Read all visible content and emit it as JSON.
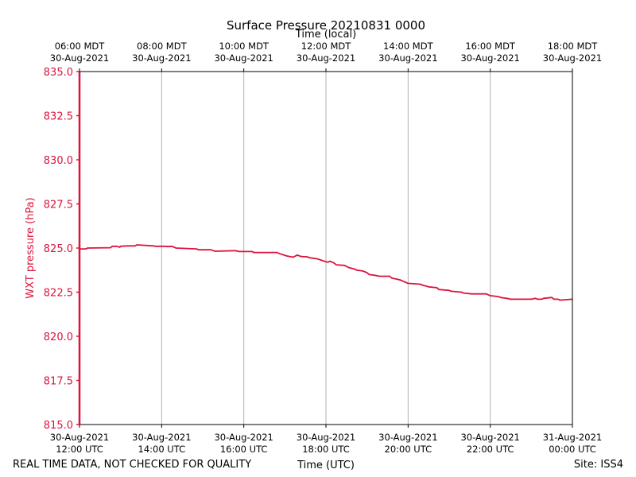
{
  "chart_data": {
    "type": "line",
    "title": "Surface Pressure 20210831 0000",
    "top_axis_label": "Time (local)",
    "xlabel": "Time (UTC)",
    "ylabel": "WXT pressure (hPa)",
    "ylim": [
      815.0,
      835.0
    ],
    "y_ticks": [
      815.0,
      817.5,
      820.0,
      822.5,
      825.0,
      827.5,
      830.0,
      832.5,
      835.0
    ],
    "y_tick_labels": [
      "815.0",
      "817.5",
      "820.0",
      "822.5",
      "825.0",
      "827.5",
      "830.0",
      "832.5",
      "835.0"
    ],
    "xlim_hours_utc": [
      12,
      24
    ],
    "x_ticks_utc": [
      {
        "hour": 12,
        "date": "30-Aug-2021",
        "time": "12:00 UTC"
      },
      {
        "hour": 14,
        "date": "30-Aug-2021",
        "time": "14:00 UTC"
      },
      {
        "hour": 16,
        "date": "30-Aug-2021",
        "time": "16:00 UTC"
      },
      {
        "hour": 18,
        "date": "30-Aug-2021",
        "time": "18:00 UTC"
      },
      {
        "hour": 20,
        "date": "30-Aug-2021",
        "time": "20:00 UTC"
      },
      {
        "hour": 22,
        "date": "30-Aug-2021",
        "time": "22:00 UTC"
      },
      {
        "hour": 24,
        "date": "31-Aug-2021",
        "time": "00:00 UTC"
      }
    ],
    "x_ticks_local": [
      {
        "hour": 12,
        "time": "06:00 MDT",
        "date": "30-Aug-2021"
      },
      {
        "hour": 14,
        "time": "08:00 MDT",
        "date": "30-Aug-2021"
      },
      {
        "hour": 16,
        "time": "10:00 MDT",
        "date": "30-Aug-2021"
      },
      {
        "hour": 18,
        "time": "12:00 MDT",
        "date": "30-Aug-2021"
      },
      {
        "hour": 20,
        "time": "14:00 MDT",
        "date": "30-Aug-2021"
      },
      {
        "hour": 22,
        "time": "16:00 MDT",
        "date": "30-Aug-2021"
      },
      {
        "hour": 24,
        "time": "18:00 MDT",
        "date": "30-Aug-2021"
      }
    ],
    "grid": "vertical",
    "series": [
      {
        "name": "WXT pressure",
        "color": "#dc143c",
        "x": [
          12.0,
          12.02,
          12.15,
          12.2,
          12.75,
          12.8,
          12.9,
          12.98,
          13.0,
          13.15,
          13.35,
          13.4,
          13.8,
          13.85,
          14.1,
          14.15,
          14.25,
          14.35,
          14.85,
          14.9,
          15.2,
          15.3,
          15.8,
          15.85,
          15.9,
          16.2,
          16.25,
          16.8,
          16.85,
          17.05,
          17.2,
          17.3,
          17.4,
          17.55,
          17.6,
          17.7,
          17.8,
          17.9,
          18.0,
          18.05,
          18.1,
          18.2,
          18.25,
          18.45,
          18.55,
          18.7,
          18.75,
          18.9,
          19.0,
          19.05,
          19.2,
          19.3,
          19.55,
          19.6,
          19.8,
          19.85,
          20.0,
          20.3,
          20.35,
          20.5,
          20.7,
          20.75,
          21.0,
          21.05,
          21.3,
          21.35,
          21.55,
          21.9,
          22.0,
          22.2,
          22.25,
          22.4,
          22.5,
          22.9,
          23.0,
          23.1,
          23.15,
          23.25,
          23.3,
          23.5,
          23.55,
          23.65,
          23.7,
          24.0
        ],
        "values": [
          825.0,
          824.95,
          824.95,
          825.0,
          825.02,
          825.1,
          825.1,
          825.05,
          825.1,
          825.12,
          825.12,
          825.18,
          825.12,
          825.1,
          825.1,
          825.08,
          825.1,
          825.0,
          824.95,
          824.9,
          824.9,
          824.82,
          824.85,
          824.82,
          824.8,
          824.8,
          824.75,
          824.75,
          824.7,
          824.55,
          824.48,
          824.6,
          824.52,
          824.5,
          824.45,
          824.42,
          824.38,
          824.3,
          824.22,
          824.2,
          824.25,
          824.15,
          824.05,
          824.02,
          823.9,
          823.8,
          823.75,
          823.7,
          823.6,
          823.5,
          823.45,
          823.4,
          823.4,
          823.3,
          823.2,
          823.15,
          823.0,
          822.95,
          822.9,
          822.8,
          822.75,
          822.65,
          822.6,
          822.55,
          822.5,
          822.45,
          822.4,
          822.4,
          822.3,
          822.25,
          822.2,
          822.15,
          822.1,
          822.1,
          822.1,
          822.15,
          822.1,
          822.1,
          822.15,
          822.2,
          822.1,
          822.1,
          822.05,
          822.1
        ]
      }
    ]
  },
  "footer": {
    "disclaimer": "REAL TIME DATA, NOT CHECKED FOR QUALITY",
    "site": "Site: ISS4"
  }
}
